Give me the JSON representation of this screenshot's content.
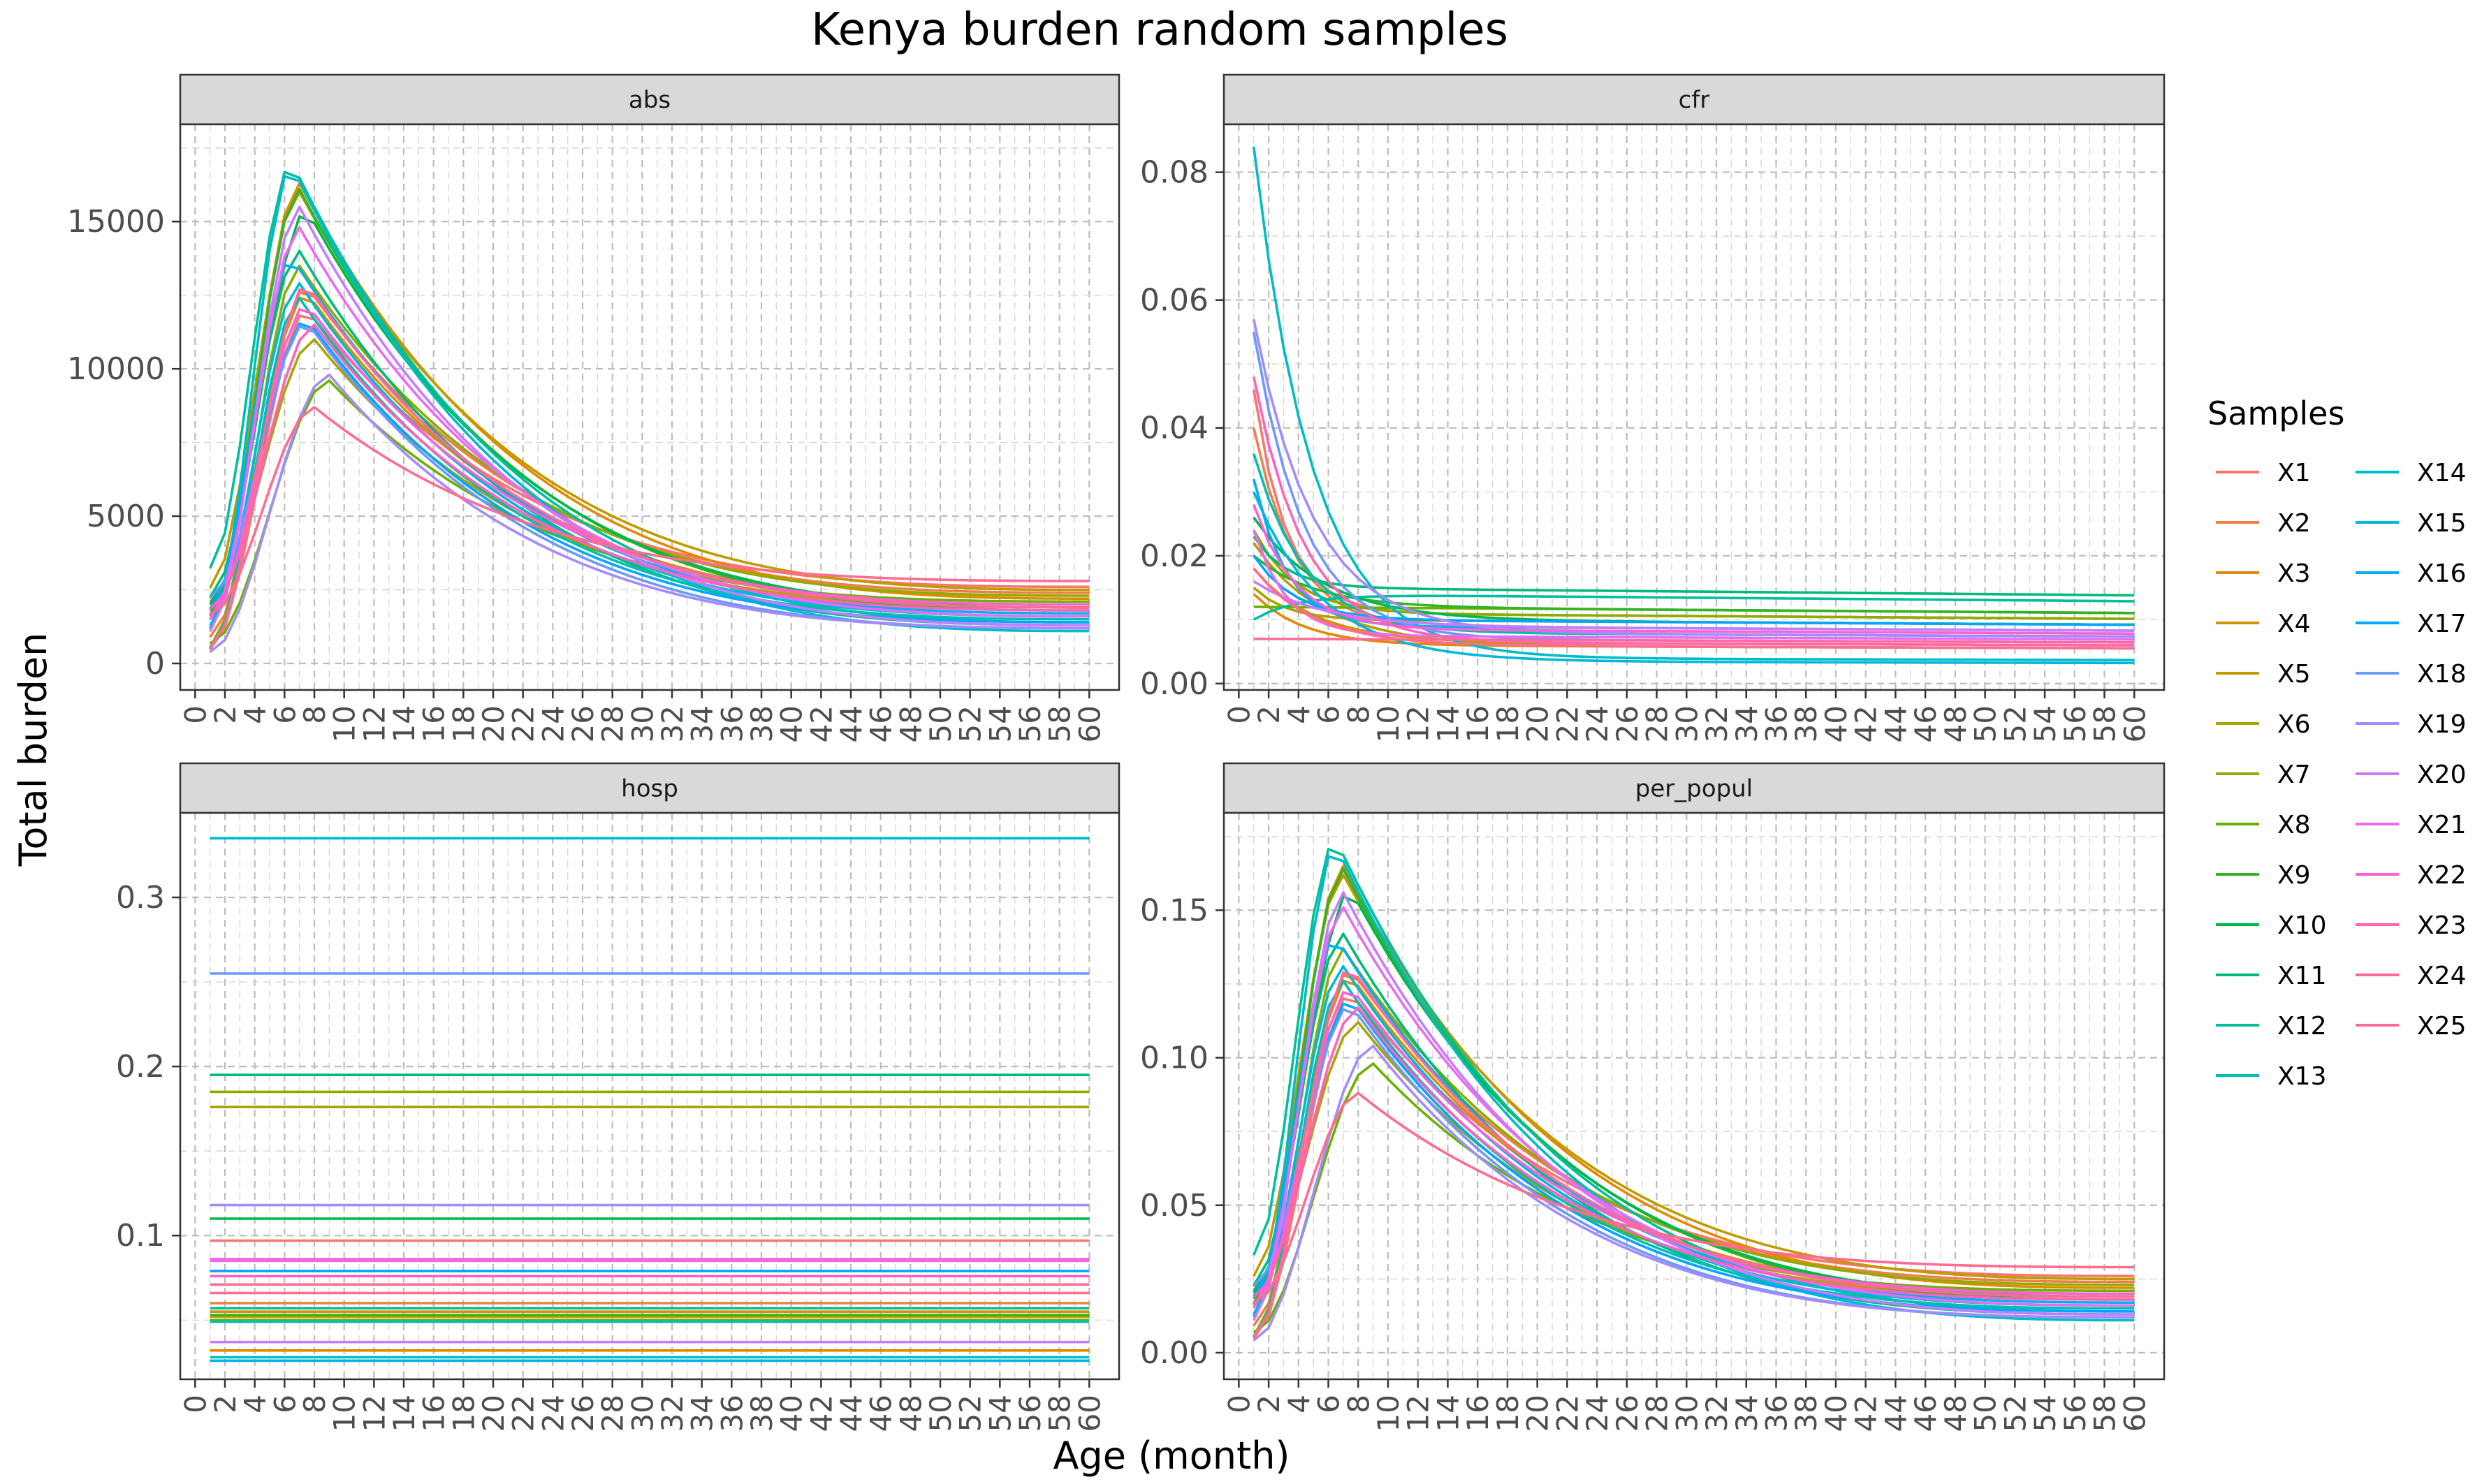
{
  "chart_data": {
    "type": "line",
    "title": "Kenya burden random samples",
    "xlabel": "Age (month)",
    "ylabel": "Total burden",
    "legend": {
      "title": "Samples",
      "position": "right",
      "columns": 2
    },
    "grid": true,
    "x": [
      1,
      2,
      3,
      4,
      5,
      6,
      7,
      8,
      9,
      10,
      11,
      12,
      13,
      14,
      15,
      16,
      17,
      18,
      19,
      20,
      21,
      22,
      23,
      24,
      25,
      26,
      27,
      28,
      29,
      30,
      31,
      32,
      33,
      34,
      35,
      36,
      37,
      38,
      39,
      40,
      41,
      42,
      43,
      44,
      45,
      46,
      47,
      48,
      49,
      50,
      51,
      52,
      53,
      54,
      55,
      56,
      57,
      58,
      59,
      60
    ],
    "x_ticks": [
      0,
      2,
      4,
      6,
      8,
      10,
      12,
      14,
      16,
      18,
      20,
      22,
      24,
      26,
      28,
      30,
      32,
      34,
      36,
      38,
      40,
      42,
      44,
      46,
      48,
      50,
      52,
      54,
      56,
      58,
      60
    ],
    "xlim": [
      -1,
      62
    ],
    "series": [
      {
        "name": "X1",
        "color": "#F8766D"
      },
      {
        "name": "X2",
        "color": "#EF7F46"
      },
      {
        "name": "X3",
        "color": "#E38900"
      },
      {
        "name": "X4",
        "color": "#D39200"
      },
      {
        "name": "X5",
        "color": "#C09B00"
      },
      {
        "name": "X6",
        "color": "#A9A400"
      },
      {
        "name": "X7",
        "color": "#8EAB00"
      },
      {
        "name": "X8",
        "color": "#6BB100"
      },
      {
        "name": "X9",
        "color": "#31B425"
      },
      {
        "name": "X10",
        "color": "#00B84A"
      },
      {
        "name": "X11",
        "color": "#00BB78"
      },
      {
        "name": "X12",
        "color": "#00BF9C"
      },
      {
        "name": "X13",
        "color": "#00BEB2"
      },
      {
        "name": "X14",
        "color": "#00BCC6"
      },
      {
        "name": "X15",
        "color": "#00B8DB"
      },
      {
        "name": "X16",
        "color": "#00B0EF"
      },
      {
        "name": "X17",
        "color": "#00A6FF"
      },
      {
        "name": "X18",
        "color": "#6B99FF"
      },
      {
        "name": "X19",
        "color": "#A38BFF"
      },
      {
        "name": "X20",
        "color": "#C77CFF"
      },
      {
        "name": "X21",
        "color": "#E76BF3"
      },
      {
        "name": "X22",
        "color": "#FB61D7"
      },
      {
        "name": "X23",
        "color": "#FF62BC"
      },
      {
        "name": "X24",
        "color": "#FF6C91"
      },
      {
        "name": "X25",
        "color": "#FF6A98"
      }
    ],
    "panels": [
      {
        "label": "abs",
        "ylim": [
          -900,
          18300
        ],
        "y_ticks": [
          0,
          5000,
          10000,
          15000
        ],
        "y_tick_labels": [
          "0",
          "5000",
          "10000",
          "15000"
        ],
        "kind": "curve",
        "peak": [
          12000,
          12800,
          16300,
          12600,
          16000,
          11000,
          13500,
          9600,
          16100,
          15400,
          14000,
          17000,
          12400,
          16900,
          12900,
          13800,
          11700,
          11600,
          9800,
          15500,
          14800,
          12200,
          11500,
          8700,
          12900
        ],
        "peak_month": [
          7.5,
          7.5,
          7,
          7.5,
          7,
          8,
          7,
          9,
          7,
          7.5,
          7,
          6.5,
          7,
          6.5,
          7,
          6.5,
          7.5,
          7.5,
          9,
          7,
          7,
          7.5,
          8,
          8,
          7.5
        ],
        "tail": [
          2600,
          2400,
          2200,
          2000,
          2500,
          1900,
          2300,
          2100,
          1800,
          1900,
          1300,
          1400,
          1500,
          1100,
          1600,
          1700,
          1400,
          1200,
          1200,
          1300,
          1600,
          2000,
          1800,
          2800,
          1900
        ]
      },
      {
        "label": "cfr",
        "ylim": [
          -0.001,
          0.0875
        ],
        "y_ticks": [
          0.0,
          0.02,
          0.04,
          0.06,
          0.08
        ],
        "y_tick_labels": [
          "0.00",
          "0.02",
          "0.04",
          "0.06",
          "0.08"
        ],
        "kind": "decay",
        "start": [
          0.046,
          0.04,
          0.014,
          0.018,
          0.022,
          0.015,
          0.024,
          0.012,
          0.02,
          0.026,
          0.023,
          0.01,
          0.036,
          0.084,
          0.03,
          0.032,
          0.02,
          0.055,
          0.057,
          0.016,
          0.024,
          0.028,
          0.048,
          0.018,
          0.007
        ],
        "end": [
          0.011,
          0.0085,
          0.006,
          0.0065,
          0.006,
          0.01,
          0.011,
          0.012,
          0.012,
          0.01,
          0.015,
          0.014,
          0.008,
          0.004,
          0.0035,
          0.009,
          0.01,
          0.007,
          0.008,
          0.009,
          0.0075,
          0.0085,
          0.0065,
          0.006,
          0.007
        ]
      },
      {
        "label": "hosp",
        "ylim": [
          0.015,
          0.35
        ],
        "y_ticks": [
          0.1,
          0.2,
          0.3
        ],
        "y_tick_labels": [
          "0.1",
          "0.2",
          "0.3"
        ],
        "kind": "flat",
        "values": [
          0.097,
          0.06,
          0.032,
          0.055,
          0.052,
          0.176,
          0.185,
          0.05,
          0.053,
          0.11,
          0.195,
          0.057,
          0.049,
          0.028,
          0.335,
          0.026,
          0.079,
          0.255,
          0.118,
          0.037,
          0.085,
          0.086,
          0.076,
          0.066,
          0.071
        ]
      },
      {
        "label": "per_popul",
        "ylim": [
          -0.009,
          0.183
        ],
        "y_ticks": [
          0.0,
          0.05,
          0.1,
          0.15
        ],
        "y_tick_labels": [
          "0.00",
          "0.05",
          "0.10",
          "0.15"
        ],
        "kind": "curve",
        "peak": [
          0.122,
          0.13,
          0.165,
          0.128,
          0.162,
          0.112,
          0.137,
          0.098,
          0.164,
          0.157,
          0.142,
          0.174,
          0.126,
          0.172,
          0.131,
          0.141,
          0.12,
          0.118,
          0.104,
          0.156,
          0.151,
          0.124,
          0.117,
          0.088,
          0.131
        ],
        "peak_month": [
          7.5,
          7.5,
          7,
          7.5,
          7,
          8,
          7,
          9,
          7,
          7.5,
          7,
          6.5,
          7,
          6.5,
          7,
          6.5,
          7.5,
          7.5,
          9,
          7,
          7,
          7.5,
          8,
          8,
          7.5
        ],
        "tail": [
          0.026,
          0.024,
          0.022,
          0.02,
          0.025,
          0.019,
          0.023,
          0.021,
          0.018,
          0.019,
          0.013,
          0.014,
          0.015,
          0.011,
          0.016,
          0.017,
          0.014,
          0.012,
          0.012,
          0.013,
          0.016,
          0.02,
          0.018,
          0.029,
          0.019
        ]
      }
    ]
  }
}
